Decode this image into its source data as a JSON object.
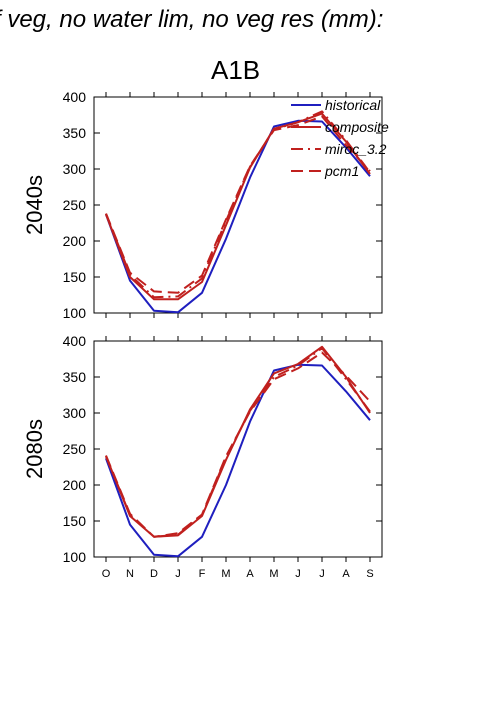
{
  "page": {
    "title": "f veg, no water lim, no veg res (mm):",
    "scenario": "A1B"
  },
  "colors": {
    "historical": "#1f1fbf",
    "composite": "#c0201e",
    "miroc_3.2": "#c0201e",
    "pcm1": "#c0201e"
  },
  "chart_data": [
    {
      "type": "line",
      "panel_label": "2040s",
      "categories": [
        "O",
        "N",
        "D",
        "J",
        "F",
        "M",
        "A",
        "M",
        "J",
        "J",
        "A",
        "S"
      ],
      "ylim": [
        100,
        400
      ],
      "yticks": [
        100,
        150,
        200,
        250,
        300,
        350,
        400
      ],
      "show_xtick_labels": false,
      "legend": {
        "position": "top-right"
      },
      "series": [
        {
          "name": "historical",
          "dash": "solid",
          "values": [
            237,
            145,
            103,
            101,
            128,
            203,
            288,
            359,
            367,
            366,
            330,
            290
          ]
        },
        {
          "name": "composite",
          "dash": "solid",
          "values": [
            237,
            150,
            119,
            119,
            143,
            222,
            302,
            356,
            365,
            377,
            338,
            293
          ]
        },
        {
          "name": "miroc_3.2",
          "dash": "dashdot",
          "values": [
            238,
            153,
            122,
            123,
            148,
            228,
            303,
            355,
            365,
            380,
            340,
            295
          ]
        },
        {
          "name": "pcm1",
          "dash": "dash",
          "values": [
            238,
            156,
            130,
            128,
            152,
            230,
            304,
            354,
            361,
            373,
            333,
            297
          ]
        }
      ]
    },
    {
      "type": "line",
      "panel_label": "2080s",
      "categories": [
        "O",
        "N",
        "D",
        "J",
        "F",
        "M",
        "A",
        "M",
        "J",
        "J",
        "A",
        "S"
      ],
      "ylim": [
        100,
        400
      ],
      "yticks": [
        100,
        150,
        200,
        250,
        300,
        350,
        400
      ],
      "show_xtick_labels": true,
      "series": [
        {
          "name": "historical",
          "dash": "solid",
          "values": [
            237,
            145,
            103,
            101,
            128,
            200,
            288,
            359,
            367,
            366,
            330,
            290
          ]
        },
        {
          "name": "composite",
          "dash": "solid",
          "values": [
            240,
            157,
            128,
            130,
            157,
            235,
            305,
            355,
            368,
            392,
            350,
            300
          ]
        },
        {
          "name": "miroc_3.2",
          "dash": "dashdot",
          "values": [
            240,
            158,
            128,
            131,
            158,
            238,
            303,
            350,
            366,
            390,
            347,
            302
          ]
        },
        {
          "name": "pcm1",
          "dash": "dash",
          "values": [
            241,
            160,
            128,
            133,
            159,
            240,
            302,
            347,
            362,
            384,
            352,
            316
          ]
        }
      ]
    }
  ]
}
